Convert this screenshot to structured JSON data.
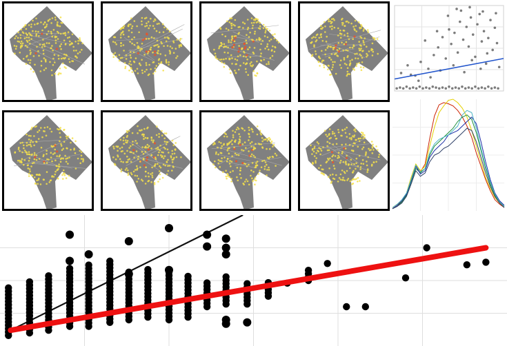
{
  "maps": {
    "tiles": [
      {
        "id": 1,
        "hotspot": 0.35
      },
      {
        "id": 2,
        "hotspot": 0.55
      },
      {
        "id": 3,
        "hotspot": 0.45
      },
      {
        "id": 4,
        "hotspot": 0.3
      },
      {
        "id": 5,
        "hotspot": 0.25
      },
      {
        "id": 6,
        "hotspot": 0.6
      },
      {
        "id": 7,
        "hotspot": 0.4
      },
      {
        "id": 8,
        "hotspot": 0.2
      }
    ],
    "land_color": "#808080",
    "point_color": "#f5e04a",
    "hot_color": "#e8552c",
    "border_color": "#000000"
  },
  "chart_data": [
    {
      "type": "scatter",
      "panel": "top-right-scatter",
      "xlim": [
        0,
        10
      ],
      "ylim": [
        0,
        10
      ],
      "grid": true,
      "point_color": "#444444",
      "fit_color": "#2255cc",
      "fit_line": {
        "x": [
          0,
          10
        ],
        "y": [
          1.4,
          3.8
        ]
      },
      "points": [
        [
          0.2,
          0.3
        ],
        [
          0.5,
          0.4
        ],
        [
          0.8,
          0.3
        ],
        [
          1.1,
          0.5
        ],
        [
          1.4,
          0.3
        ],
        [
          1.7,
          0.4
        ],
        [
          2.0,
          0.3
        ],
        [
          2.3,
          0.5
        ],
        [
          2.6,
          0.3
        ],
        [
          2.9,
          0.4
        ],
        [
          3.2,
          0.3
        ],
        [
          3.5,
          0.5
        ],
        [
          3.8,
          0.4
        ],
        [
          4.1,
          0.3
        ],
        [
          4.4,
          0.4
        ],
        [
          4.7,
          0.3
        ],
        [
          5.0,
          0.5
        ],
        [
          5.3,
          0.3
        ],
        [
          5.6,
          0.4
        ],
        [
          5.9,
          0.3
        ],
        [
          6.2,
          0.5
        ],
        [
          6.5,
          0.3
        ],
        [
          6.8,
          0.4
        ],
        [
          7.1,
          0.3
        ],
        [
          7.4,
          0.5
        ],
        [
          7.7,
          0.3
        ],
        [
          8.0,
          0.4
        ],
        [
          8.3,
          0.3
        ],
        [
          8.6,
          0.5
        ],
        [
          8.9,
          0.3
        ],
        [
          9.2,
          0.4
        ],
        [
          9.5,
          0.3
        ],
        [
          0.6,
          2.1
        ],
        [
          1.2,
          3.0
        ],
        [
          1.9,
          1.8
        ],
        [
          2.4,
          3.4
        ],
        [
          3.1,
          2.6
        ],
        [
          3.6,
          4.2
        ],
        [
          4.0,
          5.1
        ],
        [
          4.4,
          6.3
        ],
        [
          4.7,
          3.8
        ],
        [
          5.0,
          7.2
        ],
        [
          5.2,
          5.5
        ],
        [
          5.5,
          6.8
        ],
        [
          5.8,
          4.5
        ],
        [
          6.0,
          8.1
        ],
        [
          6.3,
          6.0
        ],
        [
          6.6,
          7.5
        ],
        [
          6.8,
          5.2
        ],
        [
          7.0,
          8.6
        ],
        [
          7.2,
          6.6
        ],
        [
          7.4,
          4.0
        ],
        [
          7.6,
          7.8
        ],
        [
          7.8,
          9.0
        ],
        [
          8.0,
          5.8
        ],
        [
          8.2,
          7.0
        ],
        [
          8.4,
          3.2
        ],
        [
          8.6,
          6.2
        ],
        [
          8.8,
          8.3
        ],
        [
          9.0,
          4.8
        ],
        [
          9.2,
          7.4
        ],
        [
          9.4,
          5.6
        ],
        [
          9.6,
          2.8
        ],
        [
          3.3,
          1.6
        ],
        [
          4.2,
          2.4
        ],
        [
          5.4,
          3.0
        ],
        [
          6.4,
          2.2
        ],
        [
          7.1,
          3.6
        ],
        [
          7.9,
          2.6
        ],
        [
          8.5,
          4.4
        ],
        [
          2.2,
          1.2
        ],
        [
          1.5,
          1.9
        ],
        [
          6.1,
          9.4
        ],
        [
          4.9,
          8.8
        ],
        [
          3.9,
          7.0
        ],
        [
          2.8,
          5.9
        ],
        [
          5.7,
          9.6
        ],
        [
          8.1,
          9.3
        ],
        [
          9.3,
          9.1
        ],
        [
          6.9,
          9.8
        ]
      ]
    },
    {
      "type": "line",
      "panel": "middle-right-lines",
      "xlim": [
        0,
        24
      ],
      "ylim": [
        0,
        100
      ],
      "grid": true,
      "series": [
        {
          "color": "#cc2200",
          "values": [
            2,
            5,
            8,
            15,
            28,
            40,
            35,
            42,
            65,
            85,
            95,
            97,
            96,
            94,
            90,
            84,
            76,
            66,
            52,
            40,
            28,
            18,
            10,
            6,
            3
          ]
        },
        {
          "color": "#e5d000",
          "values": [
            3,
            6,
            9,
            16,
            30,
            42,
            36,
            40,
            58,
            75,
            88,
            94,
            99,
            100,
            97,
            92,
            84,
            72,
            58,
            44,
            30,
            20,
            12,
            7,
            4
          ]
        },
        {
          "color": "#1a8f3a",
          "values": [
            2,
            4,
            8,
            14,
            26,
            38,
            34,
            38,
            50,
            58,
            62,
            66,
            70,
            74,
            80,
            84,
            86,
            82,
            70,
            54,
            38,
            24,
            14,
            8,
            4
          ]
        },
        {
          "color": "#1d2fa8",
          "values": [
            2,
            5,
            9,
            15,
            27,
            40,
            33,
            36,
            48,
            54,
            58,
            62,
            68,
            70,
            72,
            76,
            80,
            84,
            78,
            62,
            44,
            28,
            16,
            9,
            5
          ]
        },
        {
          "color": "#4ab3c2",
          "values": [
            3,
            6,
            10,
            16,
            28,
            41,
            35,
            38,
            52,
            60,
            64,
            66,
            68,
            72,
            76,
            86,
            90,
            88,
            74,
            56,
            40,
            26,
            15,
            8,
            4
          ]
        },
        {
          "color": "#2c3e66",
          "values": [
            2,
            4,
            7,
            13,
            24,
            36,
            31,
            34,
            44,
            50,
            52,
            56,
            58,
            62,
            66,
            70,
            74,
            72,
            62,
            48,
            34,
            22,
            13,
            7,
            3
          ]
        }
      ]
    },
    {
      "type": "scatter",
      "panel": "bottom-main-scatter",
      "xlim": [
        0,
        24
      ],
      "ylim": [
        0,
        100
      ],
      "grid": true,
      "point_color": "#000000",
      "fit_color": "#ee1111",
      "fit_line": {
        "x": [
          0.5,
          23
        ],
        "y": [
          12,
          75
        ]
      },
      "diag_line": {
        "x": [
          0.5,
          11.5
        ],
        "y": [
          12,
          100
        ]
      },
      "columns": [
        {
          "x": 0.4,
          "ymin": 8,
          "ymax": 45,
          "extra": []
        },
        {
          "x": 1.4,
          "ymin": 10,
          "ymax": 50,
          "extra": []
        },
        {
          "x": 2.3,
          "ymin": 12,
          "ymax": 55,
          "extra": []
        },
        {
          "x": 3.3,
          "ymin": 15,
          "ymax": 60,
          "extra": [
            85,
            65
          ]
        },
        {
          "x": 4.2,
          "ymin": 15,
          "ymax": 63,
          "extra": [
            70
          ]
        },
        {
          "x": 5.2,
          "ymin": 18,
          "ymax": 65,
          "extra": []
        },
        {
          "x": 6.1,
          "ymin": 20,
          "ymax": 58,
          "extra": [
            80,
            55
          ]
        },
        {
          "x": 7.0,
          "ymin": 22,
          "ymax": 60,
          "extra": []
        },
        {
          "x": 8.0,
          "ymin": 20,
          "ymax": 58,
          "extra": [
            90,
            58
          ]
        },
        {
          "x": 8.9,
          "ymin": 22,
          "ymax": 55,
          "extra": []
        },
        {
          "x": 9.8,
          "ymin": 30,
          "ymax": 50,
          "extra": [
            85,
            76
          ]
        },
        {
          "x": 10.7,
          "ymin": 32,
          "ymax": 55,
          "extra": [
            82,
            75,
            70,
            20,
            17
          ]
        },
        {
          "x": 11.7,
          "ymin": 32,
          "ymax": 50,
          "extra": [
            18
          ]
        },
        {
          "x": 12.7,
          "ymin": 38,
          "ymax": 50,
          "extra": []
        },
        {
          "x": 13.6,
          "ymin": 48,
          "ymax": 48,
          "extra": []
        },
        {
          "x": 14.6,
          "ymin": 50,
          "ymax": 60,
          "extra": []
        },
        {
          "x": 15.5,
          "ymin": 63,
          "ymax": 63,
          "extra": []
        },
        {
          "x": 16.4,
          "ymin": 30,
          "ymax": 32,
          "extra": []
        },
        {
          "x": 17.3,
          "ymin": 30,
          "ymax": 30,
          "extra": []
        },
        {
          "x": 19.2,
          "ymin": 52,
          "ymax": 52,
          "extra": []
        },
        {
          "x": 20.2,
          "ymin": 75,
          "ymax": 75,
          "extra": []
        },
        {
          "x": 22.1,
          "ymin": 62,
          "ymax": 62,
          "extra": []
        },
        {
          "x": 23.0,
          "ymin": 64,
          "ymax": 64,
          "extra": []
        }
      ]
    }
  ]
}
